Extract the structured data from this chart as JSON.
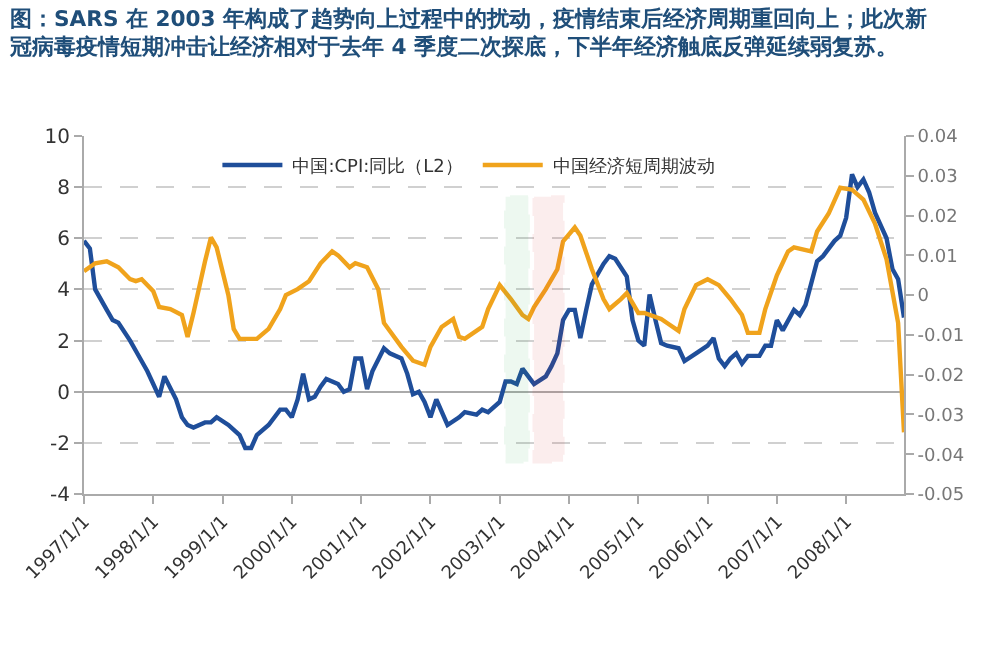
{
  "chart_data": {
    "type": "line",
    "title": "图：SARS 在 2003 年构成了趋势向上过程中的扰动，疫情结束后经济周期重回向上；此次新冠病毒疫情短期冲击让经济相对于去年 4 季度二次探底，下半年经济触底反弹延续弱复苏。",
    "series": [
      {
        "name": "中国:CPI:同比（L2）",
        "color": "#1f4e9a",
        "axis": "y",
        "x": [
          "1997-01",
          "1997-02",
          "1997-03",
          "1997-05",
          "1997-06",
          "1997-07",
          "1997-09",
          "1997-10",
          "1997-12",
          "1998-01",
          "1998-02",
          "1998-03",
          "1998-05",
          "1998-06",
          "1998-07",
          "1998-08",
          "1998-10",
          "1998-11",
          "1998-12",
          "1999-02",
          "1999-04",
          "1999-05",
          "1999-06",
          "1999-07",
          "1999-09",
          "1999-11",
          "1999-12",
          "2000-01",
          "2000-02",
          "2000-03",
          "2000-04",
          "2000-05",
          "2000-06",
          "2000-07",
          "2000-09",
          "2000-10",
          "2000-11",
          "2000-12",
          "2001-01",
          "2001-02",
          "2001-03",
          "2001-05",
          "2001-06",
          "2001-08",
          "2001-09",
          "2001-10",
          "2001-11",
          "2001-12",
          "2002-01",
          "2002-02",
          "2002-04",
          "2002-06",
          "2002-07",
          "2002-09",
          "2002-10",
          "2002-11",
          "2003-01",
          "2003-02",
          "2003-03",
          "2003-04",
          "2003-05",
          "2003-07",
          "2003-09",
          "2003-10",
          "2003-11",
          "2003-12",
          "2004-01",
          "2004-02",
          "2004-03",
          "2004-04",
          "2004-05",
          "2004-07",
          "2004-08",
          "2004-09",
          "2004-11",
          "2004-12",
          "2005-01",
          "2005-02",
          "2005-03",
          "2005-04",
          "2005-05",
          "2005-06",
          "2005-08",
          "2005-09",
          "2005-11",
          "2006-01",
          "2006-02",
          "2006-03",
          "2006-04",
          "2006-05",
          "2006-06",
          "2006-07",
          "2006-08",
          "2006-10",
          "2006-11",
          "2006-12",
          "2007-01",
          "2007-02",
          "2007-04",
          "2007-05",
          "2007-06",
          "2007-08",
          "2007-09",
          "2007-11",
          "2007-12",
          "2008-01",
          "2008-02",
          "2008-03",
          "2008-04",
          "2008-05",
          "2008-06",
          "2008-08",
          "2008-09",
          "2008-10",
          "2008-11"
        ],
        "values": [
          5.9,
          5.6,
          4.0,
          3.2,
          2.8,
          2.7,
          2.0,
          1.6,
          0.8,
          0.3,
          -0.2,
          0.6,
          -0.3,
          -1.0,
          -1.3,
          -1.4,
          -1.2,
          -1.2,
          -1.0,
          -1.3,
          -1.7,
          -2.2,
          -2.2,
          -1.7,
          -1.3,
          -0.7,
          -0.7,
          -1.0,
          -0.3,
          0.7,
          -0.3,
          -0.2,
          0.2,
          0.5,
          0.3,
          0.0,
          0.1,
          1.3,
          1.3,
          0.1,
          0.8,
          1.7,
          1.5,
          1.3,
          0.7,
          -0.1,
          0.0,
          -0.4,
          -1.0,
          -0.3,
          -1.3,
          -1.0,
          -0.8,
          -0.9,
          -0.7,
          -0.8,
          -0.4,
          0.4,
          0.4,
          0.3,
          0.9,
          0.3,
          0.6,
          1.0,
          1.5,
          2.8,
          3.2,
          3.2,
          2.1,
          3.2,
          4.2,
          5.0,
          5.3,
          5.2,
          4.5,
          2.8,
          2.0,
          1.8,
          3.8,
          2.8,
          1.9,
          1.8,
          1.7,
          1.2,
          1.5,
          1.8,
          2.1,
          1.3,
          1.0,
          1.3,
          1.5,
          1.1,
          1.4,
          1.4,
          1.8,
          1.8,
          2.8,
          2.4,
          3.2,
          3.0,
          3.4,
          5.1,
          5.3,
          5.9,
          6.1,
          6.8,
          8.5,
          8.0,
          8.3,
          7.8,
          7.0,
          6.0,
          4.8,
          4.4,
          2.9
        ]
      },
      {
        "name": "中国经济短周期波动",
        "color": "#f0a31c",
        "axis": "y2",
        "x": [
          "1997-01",
          "1997-03",
          "1997-05",
          "1997-07",
          "1997-09",
          "1997-10",
          "1997-11",
          "1998-01",
          "1998-02",
          "1998-04",
          "1998-06",
          "1998-07",
          "1998-08",
          "1998-10",
          "1998-11",
          "1998-12",
          "1999-02",
          "1999-03",
          "1999-04",
          "1999-07",
          "1999-09",
          "1999-11",
          "1999-12",
          "2000-02",
          "2000-04",
          "2000-06",
          "2000-08",
          "2000-09",
          "2000-11",
          "2000-12",
          "2001-02",
          "2001-04",
          "2001-05",
          "2001-08",
          "2001-10",
          "2001-12",
          "2002-01",
          "2002-03",
          "2002-05",
          "2002-06",
          "2002-07",
          "2002-10",
          "2002-11",
          "2003-01",
          "2003-03",
          "2003-05",
          "2003-06",
          "2003-07",
          "2003-09",
          "2003-11",
          "2003-12",
          "2004-02",
          "2004-03",
          "2004-05",
          "2004-07",
          "2004-08",
          "2004-10",
          "2004-11",
          "2005-01",
          "2005-02",
          "2005-05",
          "2005-06",
          "2005-08",
          "2005-09",
          "2005-11",
          "2006-01",
          "2006-03",
          "2006-05",
          "2006-07",
          "2006-08",
          "2006-10",
          "2006-11",
          "2007-01",
          "2007-03",
          "2007-04",
          "2007-07",
          "2007-08",
          "2007-10",
          "2007-12",
          "2008-02",
          "2008-04",
          "2008-06",
          "2008-08",
          "2008-10",
          "2008-11"
        ],
        "values": [
          0.006,
          0.008,
          0.0085,
          0.007,
          0.004,
          0.0035,
          0.004,
          0.001,
          -0.003,
          -0.0035,
          -0.005,
          -0.0105,
          -0.0045,
          0.0085,
          0.0145,
          0.012,
          0.0,
          -0.0085,
          -0.011,
          -0.011,
          -0.0085,
          -0.0035,
          0.0,
          0.0015,
          0.0035,
          0.008,
          0.011,
          0.01,
          0.007,
          0.008,
          0.007,
          0.0015,
          -0.007,
          -0.013,
          -0.0165,
          -0.0175,
          -0.013,
          -0.008,
          -0.006,
          -0.0105,
          -0.011,
          -0.008,
          -0.0035,
          0.0025,
          -0.001,
          -0.005,
          -0.006,
          -0.003,
          0.0015,
          0.0065,
          0.0135,
          0.017,
          0.015,
          0.0065,
          -0.001,
          -0.0035,
          -0.001,
          0.0005,
          -0.0045,
          -0.0045,
          -0.006,
          -0.007,
          -0.009,
          -0.0035,
          0.0025,
          0.004,
          0.0025,
          -0.001,
          -0.005,
          -0.0095,
          -0.0095,
          -0.0035,
          0.005,
          0.011,
          0.012,
          0.011,
          0.016,
          0.0205,
          0.027,
          0.0265,
          0.024,
          0.018,
          0.009,
          -0.007,
          -0.0345
        ]
      }
    ],
    "xlim": [
      "1997-01-01",
      "2008-11-01"
    ],
    "xticks": [
      {
        "value": "1997-01-01",
        "label": "1997/1/1"
      },
      {
        "value": "1998-01-01",
        "label": "1998/1/1"
      },
      {
        "value": "1999-01-01",
        "label": "1999/1/1"
      },
      {
        "value": "2000-01-01",
        "label": "2000/1/1"
      },
      {
        "value": "2001-01-01",
        "label": "2001/1/1"
      },
      {
        "value": "2002-01-01",
        "label": "2002/1/1"
      },
      {
        "value": "2003-01-01",
        "label": "2003/1/1"
      },
      {
        "value": "2004-01-01",
        "label": "2004/1/1"
      },
      {
        "value": "2005-01-01",
        "label": "2005/1/1"
      },
      {
        "value": "2006-01-01",
        "label": "2006/1/1"
      },
      {
        "value": "2007-01-01",
        "label": "2007/1/1"
      },
      {
        "value": "2008-01-01",
        "label": "2008/1/1"
      }
    ],
    "ylim": [
      -4,
      10
    ],
    "yticks": [
      -4,
      -2,
      0,
      2,
      4,
      6,
      8,
      10
    ],
    "y2lim": [
      -0.05,
      0.04
    ],
    "y2ticks": [
      -0.05,
      -0.04,
      -0.03,
      -0.02,
      -0.01,
      0,
      0.01,
      0.02,
      0.03,
      0.04
    ],
    "bands": [
      {
        "axis": "x",
        "from": "2003-02",
        "to": "2003-06",
        "color": "#2eaa4a"
      },
      {
        "axis": "x",
        "from": "2003-07",
        "to": "2003-12",
        "color": "#d9262b"
      }
    ],
    "grid": "y",
    "legend": "top"
  }
}
